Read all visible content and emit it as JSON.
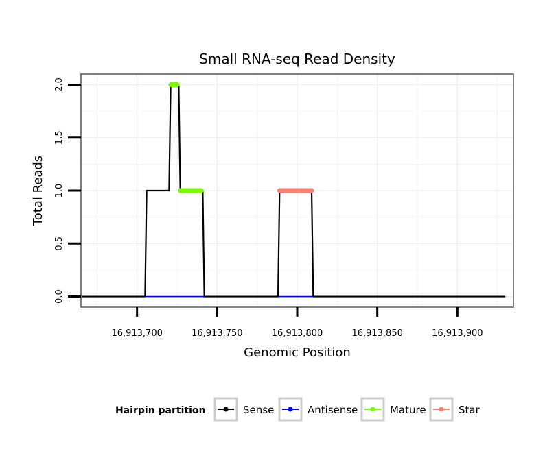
{
  "chart_data": {
    "type": "line",
    "title": "Small RNA-seq Read Density",
    "xlabel": "Genomic Position",
    "ylabel": "Total Reads",
    "xlim": [
      16913665,
      16913935
    ],
    "ylim": [
      -0.1,
      2.1
    ],
    "x_ticks": [
      16913700,
      16913750,
      16913800,
      16913850,
      16913900
    ],
    "x_tick_labels": [
      "16,913,700",
      "16,913,750",
      "16,913,800",
      "16,913,850",
      "16,913,900"
    ],
    "y_ticks": [
      0,
      0.5,
      1,
      1.5,
      2
    ],
    "y_tick_labels": [
      "0.0",
      "0.5",
      "1.0",
      "1.5",
      "2.0"
    ],
    "grid": true,
    "legend": {
      "title": "Hairpin partition",
      "position": "bottom",
      "entries": [
        {
          "name": "Sense",
          "color": "#000000"
        },
        {
          "name": "Antisense",
          "color": "#0000ff"
        },
        {
          "name": "Mature",
          "color": "#7cfc00"
        },
        {
          "name": "Star",
          "color": "#fa8072"
        }
      ]
    },
    "series": [
      {
        "name": "Sense",
        "color": "#000000",
        "x": [
          16913665,
          16913705,
          16913706,
          16913720,
          16913721,
          16913726,
          16913727,
          16913741,
          16913742,
          16913788,
          16913789,
          16913809,
          16913810,
          16913930
        ],
        "y": [
          0,
          0,
          1,
          1,
          2,
          2,
          1,
          1,
          0,
          0,
          1,
          1,
          0,
          0
        ]
      },
      {
        "name": "Antisense",
        "color": "#0000ff",
        "x": [
          16913705,
          16913742,
          16913788,
          16913810
        ],
        "y": [
          0,
          0,
          0,
          0
        ],
        "segments": [
          [
            16913705,
            16913742
          ],
          [
            16913788,
            16913810
          ]
        ]
      },
      {
        "name": "Mature",
        "color": "#7cfc00",
        "segments": [
          {
            "x": [
              16913721,
              16913725
            ],
            "y": 2
          },
          {
            "x": [
              16913727,
              16913740
            ],
            "y": 1
          }
        ]
      },
      {
        "name": "Star",
        "color": "#fa8072",
        "segments": [
          {
            "x": [
              16913789,
              16913809
            ],
            "y": 1
          }
        ]
      }
    ]
  }
}
